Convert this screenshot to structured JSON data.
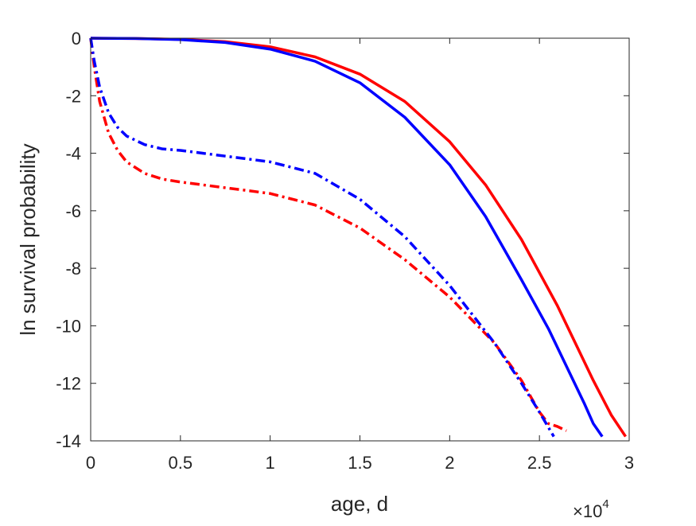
{
  "chart_data": {
    "type": "line",
    "title": "",
    "xlabel": "age, d",
    "ylabel": "ln survival probability",
    "x_exponent_label": "×10",
    "x_exponent_power": "4",
    "xlim": [
      0,
      30000
    ],
    "ylim": [
      -14,
      0
    ],
    "x_ticks": [
      0,
      5000,
      10000,
      15000,
      20000,
      25000,
      30000
    ],
    "x_tick_labels": [
      "0",
      "0.5",
      "1",
      "1.5",
      "2",
      "2.5",
      "3"
    ],
    "y_ticks": [
      0,
      -2,
      -4,
      -6,
      -8,
      -10,
      -12,
      -14
    ],
    "y_tick_labels": [
      "0",
      "-2",
      "-4",
      "-6",
      "-8",
      "-10",
      "-12",
      "-14"
    ],
    "grid": false,
    "legend": "none",
    "series": [
      {
        "color": "#ff0000",
        "style": "solid",
        "x": [
          0,
          2500,
          5000,
          7500,
          10000,
          12500,
          15000,
          17500,
          20000,
          22000,
          24000,
          26000,
          27000,
          28000,
          29000,
          29800
        ],
        "y": [
          0,
          -0.01,
          -0.04,
          -0.12,
          -0.3,
          -0.65,
          -1.25,
          -2.2,
          -3.6,
          -5.1,
          -7.0,
          -9.3,
          -10.6,
          -11.9,
          -13.1,
          -13.85
        ]
      },
      {
        "color": "#0000ff",
        "style": "solid",
        "x": [
          0,
          2500,
          5000,
          7500,
          10000,
          12500,
          15000,
          17500,
          20000,
          22000,
          24000,
          25500,
          26500,
          27500,
          28000,
          28500
        ],
        "y": [
          0,
          -0.01,
          -0.05,
          -0.15,
          -0.38,
          -0.8,
          -1.55,
          -2.75,
          -4.4,
          -6.2,
          -8.4,
          -10.1,
          -11.4,
          -12.7,
          -13.4,
          -13.85
        ]
      },
      {
        "color": "#ff0000",
        "style": "dashdot",
        "x": [
          0,
          200,
          500,
          1000,
          1500,
          2000,
          3000,
          4000,
          5000,
          7500,
          10000,
          12500,
          15000,
          17500,
          20000,
          22500,
          24000,
          25000,
          25500,
          26000,
          26500
        ],
        "y": [
          0,
          -1.0,
          -2.2,
          -3.3,
          -3.9,
          -4.3,
          -4.7,
          -4.9,
          -5.0,
          -5.2,
          -5.4,
          -5.8,
          -6.6,
          -7.7,
          -9.0,
          -10.6,
          -11.9,
          -13.0,
          -13.4,
          -13.5,
          -13.65
        ]
      },
      {
        "color": "#0000ff",
        "style": "dashdot",
        "x": [
          0,
          200,
          500,
          1000,
          1500,
          2000,
          3000,
          4000,
          5000,
          7500,
          10000,
          12500,
          15000,
          17500,
          20000,
          22500,
          24000,
          25000,
          25800
        ],
        "y": [
          0,
          -0.8,
          -1.7,
          -2.6,
          -3.1,
          -3.4,
          -3.7,
          -3.85,
          -3.9,
          -4.1,
          -4.3,
          -4.7,
          -5.6,
          -6.9,
          -8.6,
          -10.6,
          -12.0,
          -13.0,
          -13.85
        ]
      }
    ]
  }
}
